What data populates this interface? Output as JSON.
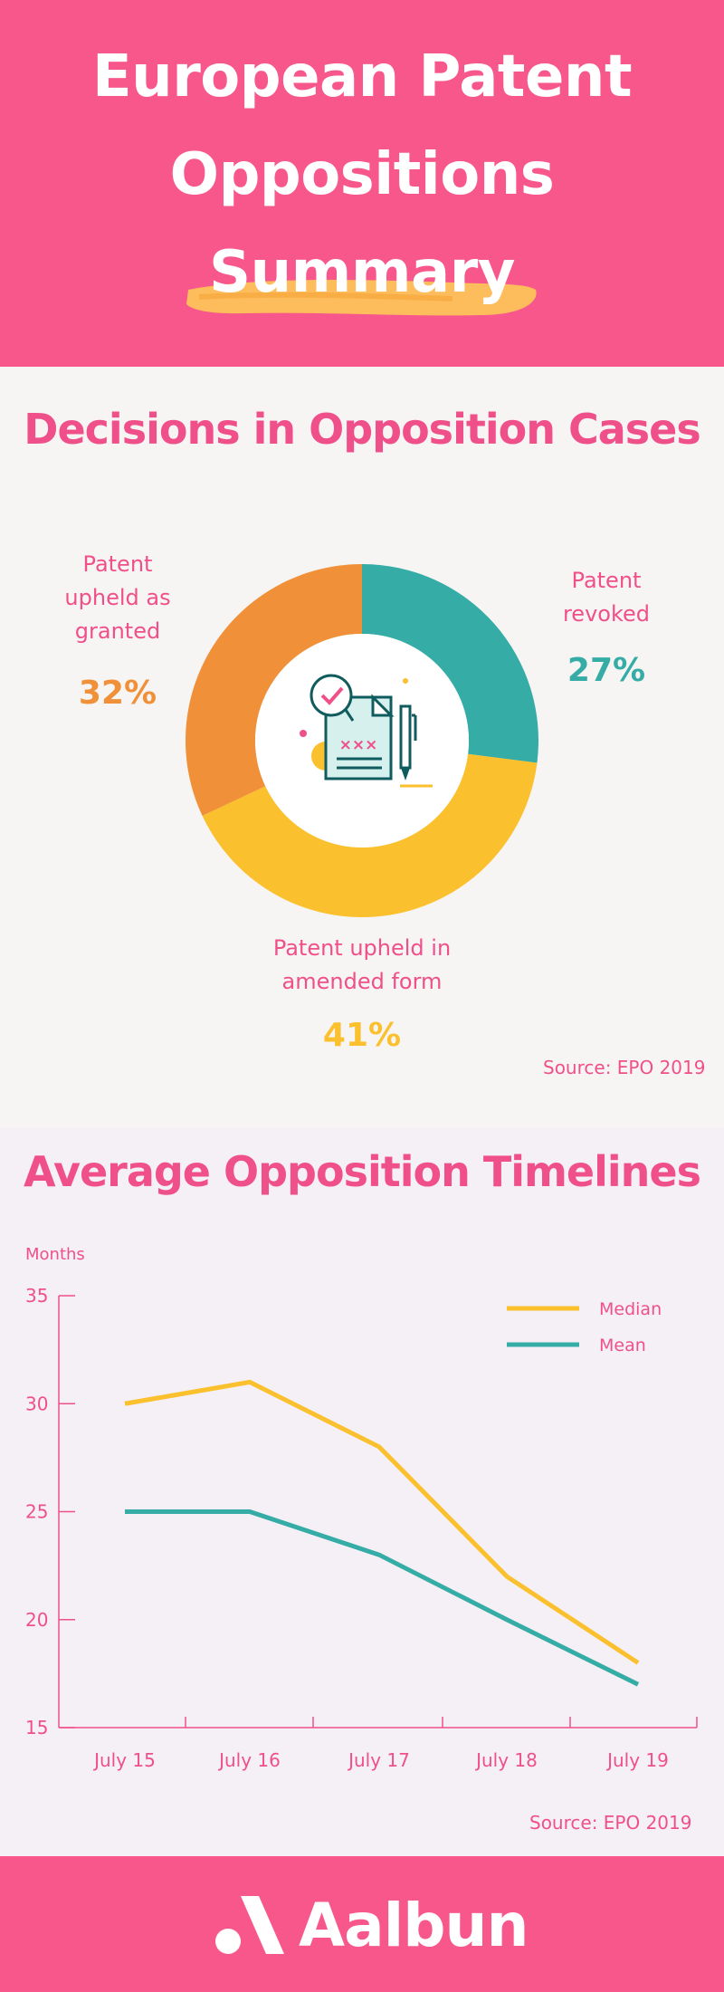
{
  "header": {
    "title_line1": "European Patent",
    "title_line2": "Oppositions",
    "title_line3": "Summary"
  },
  "donut": {
    "title": "Decisions in Opposition Cases",
    "source": "Source: EPO 2019",
    "center_icon": "document-checklist-icon",
    "segments": [
      {
        "label_lines": [
          "Patent",
          "revoked"
        ],
        "pct_label": "27%",
        "value": 27,
        "color": "#35aca6"
      },
      {
        "label_lines": [
          "Patent upheld in",
          "amended form"
        ],
        "pct_label": "41%",
        "value": 41,
        "color": "#fbc02d"
      },
      {
        "label_lines": [
          "Patent",
          "upheld as",
          "granted"
        ],
        "pct_label": "32%",
        "value": 32,
        "color": "#f0913a"
      }
    ]
  },
  "timeline": {
    "title": "Average Opposition Timelines",
    "source": "Source: EPO 2019"
  },
  "footer": {
    "brand": "Aalbun",
    "logo_icon": "aalbun-logo-icon"
  },
  "chart_data": [
    {
      "type": "pie",
      "title": "Decisions in Opposition Cases",
      "categories": [
        "Patent revoked",
        "Patent upheld in amended form",
        "Patent upheld as granted"
      ],
      "values": [
        27,
        41,
        32
      ],
      "colors": [
        "#35aca6",
        "#fbc02d",
        "#f0913a"
      ]
    },
    {
      "type": "line",
      "title": "Average Opposition Timelines",
      "ylabel": "Months",
      "xlabel": "",
      "categories": [
        "July 15",
        "July 16",
        "July 17",
        "July 18",
        "July 19"
      ],
      "ylim": [
        15,
        35
      ],
      "yticks": [
        15,
        20,
        25,
        30,
        35
      ],
      "legend_position": "top-right",
      "series": [
        {
          "name": "Median",
          "color": "#fbc02d",
          "values": [
            30,
            31,
            28,
            22,
            18
          ]
        },
        {
          "name": "Mean",
          "color": "#35aca6",
          "values": [
            25,
            25,
            23,
            20,
            17
          ]
        }
      ]
    }
  ]
}
